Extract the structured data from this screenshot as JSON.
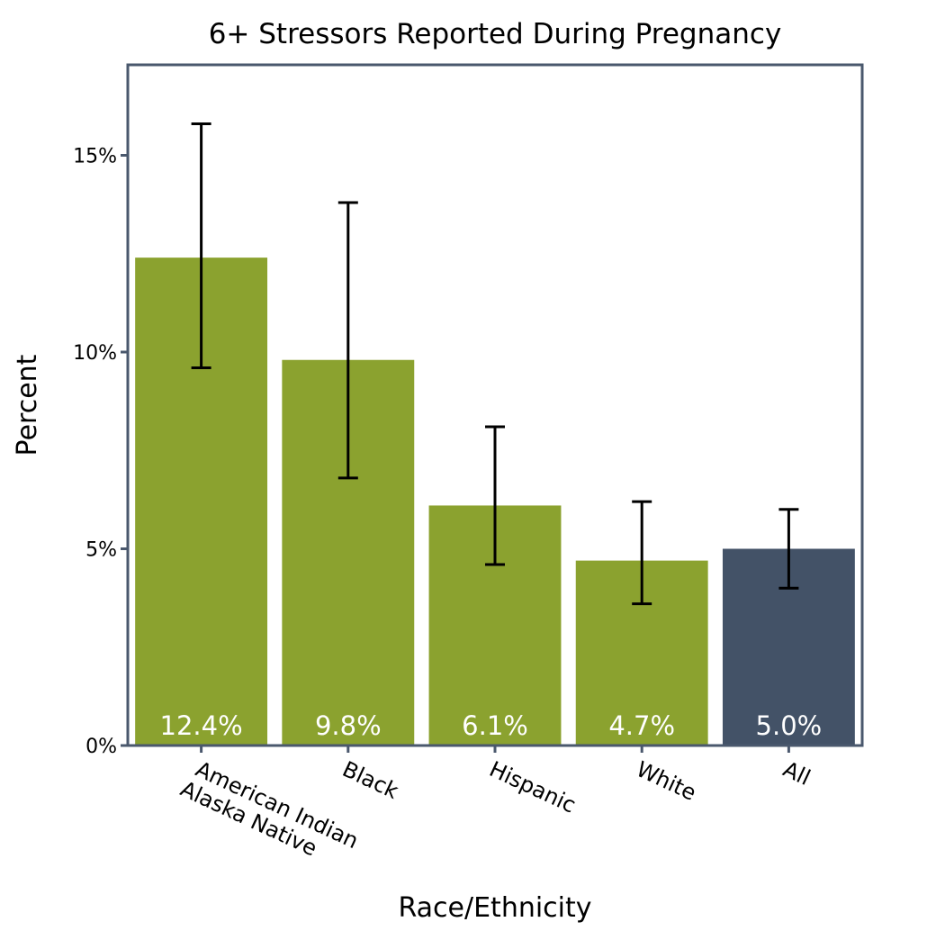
{
  "chart_data": {
    "type": "bar",
    "title": "6+ Stressors Reported During Pregnancy",
    "xlabel": "Race/Ethnicity",
    "ylabel": "Percent",
    "categories": [
      [
        "American Indian",
        "Alaska Native"
      ],
      [
        "Black"
      ],
      [
        "Hispanic"
      ],
      [
        "White"
      ],
      [
        "All"
      ]
    ],
    "values": [
      12.4,
      9.8,
      6.1,
      4.7,
      5.0
    ],
    "value_labels": [
      "12.4%",
      "9.8%",
      "6.1%",
      "4.7%",
      "5.0%"
    ],
    "error_low": [
      9.6,
      6.8,
      4.6,
      3.6,
      4.0
    ],
    "error_high": [
      15.8,
      13.8,
      8.1,
      6.2,
      6.0
    ],
    "bar_colors": [
      "#8ba22f",
      "#8ba22f",
      "#8ba22f",
      "#8ba22f",
      "#435267"
    ],
    "frame_color": "#4a586d",
    "y_ticks": [
      0,
      5,
      10,
      15
    ],
    "y_tick_labels": [
      "0%",
      "5%",
      "10%",
      "15%"
    ],
    "ylim": [
      0,
      17.3
    ],
    "grid": false,
    "legend": "none"
  }
}
